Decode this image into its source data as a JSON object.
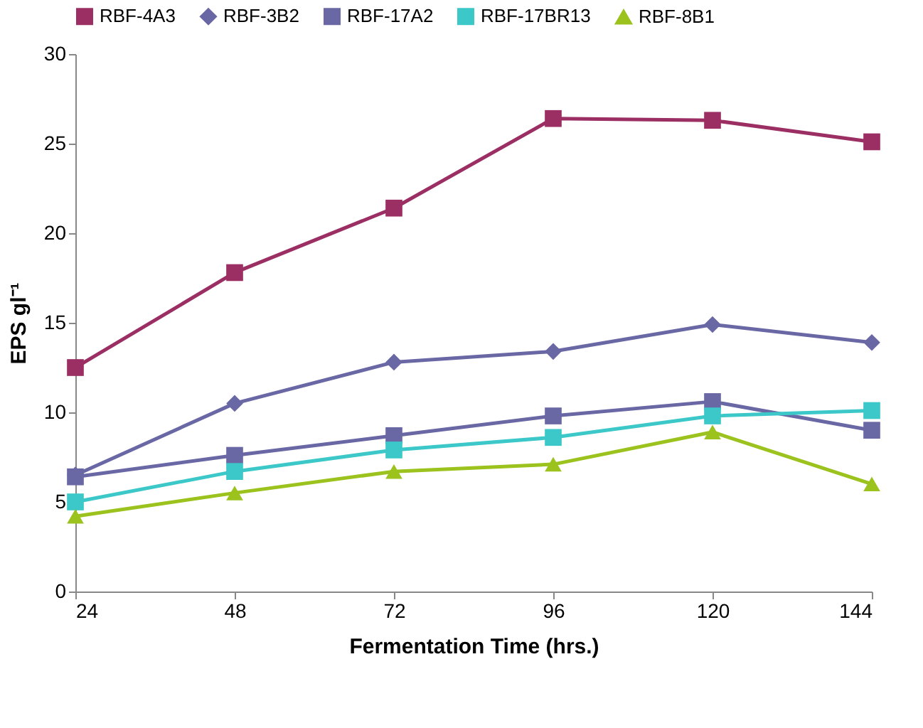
{
  "chart_data": {
    "type": "line",
    "xlabel": "Fermentation Time (hrs.)",
    "ylabel": "EPS gl⁻¹",
    "x": [
      24,
      48,
      72,
      96,
      120,
      144
    ],
    "series": [
      {
        "name": "RBF-4A3",
        "color": "#9b2f63",
        "marker": "square",
        "values": [
          12.5,
          17.8,
          21.4,
          26.4,
          26.3,
          25.1
        ]
      },
      {
        "name": "RBF-3B2",
        "color": "#6a67a5",
        "marker": "diamond",
        "values": [
          6.5,
          10.5,
          12.8,
          13.4,
          14.9,
          13.9
        ]
      },
      {
        "name": "RBF-17A2",
        "color": "#6a67a5",
        "marker": "square",
        "values": [
          6.4,
          7.6,
          8.7,
          9.8,
          10.6,
          9.0
        ]
      },
      {
        "name": "RBF-17BR13",
        "color": "#3cc8c8",
        "marker": "square",
        "values": [
          5.0,
          6.7,
          7.9,
          8.6,
          9.8,
          10.1
        ]
      },
      {
        "name": "RBF-8B1",
        "color": "#9bc21d",
        "marker": "triangle",
        "values": [
          4.2,
          5.5,
          6.7,
          7.1,
          8.9,
          6.0
        ]
      }
    ],
    "xlim": [
      24,
      144
    ],
    "xticks": [
      24,
      48,
      72,
      96,
      120,
      144
    ],
    "ylim": [
      0,
      30
    ],
    "yticks": [
      0,
      5,
      10,
      15,
      20,
      25,
      30
    ],
    "grid": false,
    "legend": "top",
    "line_style": "solid"
  }
}
